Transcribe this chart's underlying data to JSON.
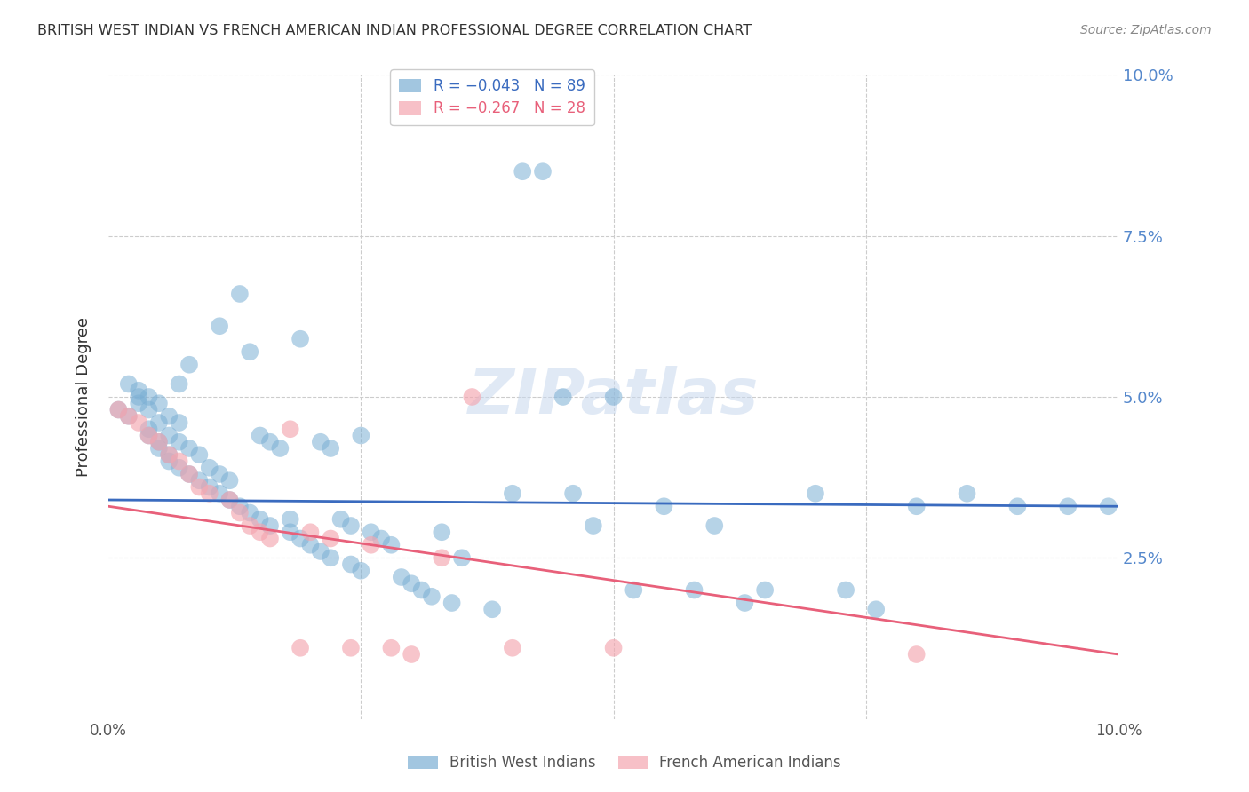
{
  "title": "BRITISH WEST INDIAN VS FRENCH AMERICAN INDIAN PROFESSIONAL DEGREE CORRELATION CHART",
  "source": "Source: ZipAtlas.com",
  "xlabel": "",
  "ylabel": "Professional Degree",
  "xlim": [
    0.0,
    0.1
  ],
  "ylim": [
    0.0,
    0.1
  ],
  "xticks": [
    0.0,
    0.025,
    0.05,
    0.075,
    0.1
  ],
  "yticks": [
    0.0,
    0.025,
    0.05,
    0.075,
    0.1
  ],
  "ytick_labels": [
    "",
    "2.5%",
    "5.0%",
    "7.5%",
    "10.0%"
  ],
  "xtick_labels": [
    "0.0%",
    "",
    "",
    "",
    "10.0%"
  ],
  "background_color": "#ffffff",
  "grid_color": "#cccccc",
  "blue_color": "#7bafd4",
  "pink_color": "#f4a6b0",
  "blue_line_color": "#3a6bbf",
  "pink_line_color": "#e8607a",
  "blue_label": "British West Indians",
  "pink_label": "French American Indians",
  "legend_R_blue": "R = −0.043",
  "legend_N_blue": "N = 89",
  "legend_R_pink": "R = −0.267",
  "legend_N_pink": "N = 28",
  "watermark": "ZIPatlas",
  "blue_scatter_x": [
    0.001,
    0.002,
    0.002,
    0.003,
    0.003,
    0.003,
    0.004,
    0.004,
    0.004,
    0.004,
    0.005,
    0.005,
    0.005,
    0.005,
    0.006,
    0.006,
    0.006,
    0.006,
    0.007,
    0.007,
    0.007,
    0.007,
    0.008,
    0.008,
    0.008,
    0.009,
    0.009,
    0.01,
    0.01,
    0.011,
    0.011,
    0.011,
    0.012,
    0.012,
    0.013,
    0.013,
    0.014,
    0.014,
    0.015,
    0.015,
    0.016,
    0.016,
    0.017,
    0.018,
    0.018,
    0.019,
    0.019,
    0.02,
    0.021,
    0.021,
    0.022,
    0.022,
    0.023,
    0.024,
    0.024,
    0.025,
    0.025,
    0.026,
    0.027,
    0.028,
    0.029,
    0.03,
    0.031,
    0.032,
    0.033,
    0.034,
    0.035,
    0.038,
    0.04,
    0.041,
    0.043,
    0.045,
    0.046,
    0.048,
    0.05,
    0.052,
    0.055,
    0.058,
    0.06,
    0.063,
    0.065,
    0.07,
    0.073,
    0.076,
    0.08,
    0.085,
    0.09,
    0.095,
    0.099
  ],
  "blue_scatter_y": [
    0.048,
    0.052,
    0.047,
    0.05,
    0.049,
    0.051,
    0.045,
    0.048,
    0.044,
    0.05,
    0.043,
    0.046,
    0.042,
    0.049,
    0.041,
    0.044,
    0.04,
    0.047,
    0.039,
    0.043,
    0.046,
    0.052,
    0.038,
    0.042,
    0.055,
    0.037,
    0.041,
    0.036,
    0.039,
    0.035,
    0.038,
    0.061,
    0.034,
    0.037,
    0.033,
    0.066,
    0.057,
    0.032,
    0.044,
    0.031,
    0.03,
    0.043,
    0.042,
    0.029,
    0.031,
    0.028,
    0.059,
    0.027,
    0.026,
    0.043,
    0.025,
    0.042,
    0.031,
    0.03,
    0.024,
    0.023,
    0.044,
    0.029,
    0.028,
    0.027,
    0.022,
    0.021,
    0.02,
    0.019,
    0.029,
    0.018,
    0.025,
    0.017,
    0.035,
    0.085,
    0.085,
    0.05,
    0.035,
    0.03,
    0.05,
    0.02,
    0.033,
    0.02,
    0.03,
    0.018,
    0.02,
    0.035,
    0.02,
    0.017,
    0.033,
    0.035,
    0.033,
    0.033,
    0.033
  ],
  "pink_scatter_x": [
    0.001,
    0.002,
    0.003,
    0.004,
    0.005,
    0.006,
    0.007,
    0.008,
    0.009,
    0.01,
    0.012,
    0.013,
    0.014,
    0.015,
    0.016,
    0.018,
    0.019,
    0.02,
    0.022,
    0.024,
    0.026,
    0.028,
    0.03,
    0.033,
    0.036,
    0.04,
    0.05,
    0.08
  ],
  "pink_scatter_y": [
    0.048,
    0.047,
    0.046,
    0.044,
    0.043,
    0.041,
    0.04,
    0.038,
    0.036,
    0.035,
    0.034,
    0.032,
    0.03,
    0.029,
    0.028,
    0.045,
    0.011,
    0.029,
    0.028,
    0.011,
    0.027,
    0.011,
    0.01,
    0.025,
    0.05,
    0.011,
    0.011,
    0.01
  ],
  "blue_trend_x": [
    0.0,
    0.1
  ],
  "blue_trend_y_start": 0.034,
  "blue_trend_y_end": 0.033,
  "pink_trend_x": [
    0.0,
    0.1
  ],
  "pink_trend_y_start": 0.033,
  "pink_trend_y_end": 0.01
}
